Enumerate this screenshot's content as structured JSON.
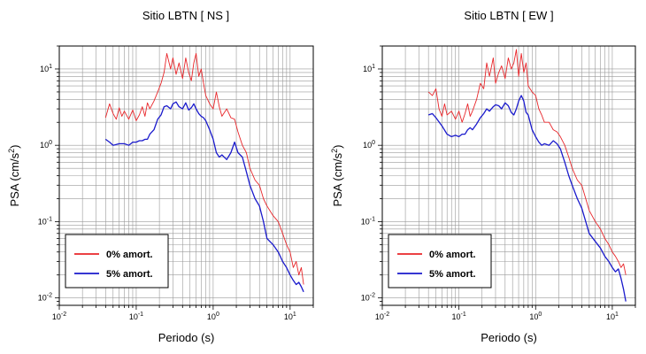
{
  "chart_data": [
    {
      "type": "line",
      "title": "Sitio LBTN [ NS ]",
      "xlabel": "Periodo (s)",
      "ylabel": "PSA (cm/s2)",
      "xscale": "log",
      "yscale": "log",
      "xlim": [
        0.01,
        20
      ],
      "ylim": [
        0.008,
        20
      ],
      "grid": true,
      "legend_position": "bottom-left",
      "x_ticks": [
        "10-2",
        "10-1",
        "100",
        "101"
      ],
      "y_ticks": [
        "10-2",
        "10-1",
        "100",
        "101"
      ],
      "series": [
        {
          "name": "0% amort.",
          "color": "#e8262a",
          "x": [
            0.04,
            0.045,
            0.05,
            0.055,
            0.06,
            0.065,
            0.07,
            0.08,
            0.09,
            0.1,
            0.11,
            0.12,
            0.13,
            0.14,
            0.15,
            0.17,
            0.19,
            0.21,
            0.23,
            0.25,
            0.28,
            0.3,
            0.33,
            0.36,
            0.4,
            0.44,
            0.48,
            0.52,
            0.56,
            0.6,
            0.65,
            0.7,
            0.75,
            0.8,
            0.9,
            1.0,
            1.1,
            1.2,
            1.3,
            1.5,
            1.7,
            1.9,
            2.1,
            2.4,
            2.7,
            3.0,
            3.5,
            4.0,
            4.5,
            5.0,
            6.0,
            7.0,
            8.0,
            9.0,
            10.0,
            11.0,
            12.0,
            13.0,
            14.0,
            15.0
          ],
          "y": [
            2.3,
            3.5,
            2.6,
            2.2,
            3.1,
            2.4,
            2.8,
            2.2,
            2.9,
            2.1,
            2.5,
            3.2,
            2.4,
            3.6,
            3.0,
            3.8,
            5.0,
            6.5,
            9.0,
            16.0,
            10.0,
            14.0,
            8.5,
            12.0,
            7.5,
            14.0,
            9.0,
            7.0,
            12.0,
            16.0,
            8.0,
            10.0,
            6.5,
            4.5,
            3.5,
            3.0,
            5.0,
            3.2,
            2.4,
            3.0,
            2.3,
            2.2,
            1.5,
            1.0,
            0.8,
            0.5,
            0.35,
            0.3,
            0.2,
            0.16,
            0.12,
            0.1,
            0.07,
            0.05,
            0.04,
            0.025,
            0.03,
            0.02,
            0.025,
            0.015
          ]
        },
        {
          "name": "5% amort.",
          "color": "#1a1acc",
          "x": [
            0.04,
            0.045,
            0.05,
            0.06,
            0.07,
            0.08,
            0.09,
            0.1,
            0.11,
            0.12,
            0.13,
            0.14,
            0.15,
            0.17,
            0.19,
            0.21,
            0.23,
            0.25,
            0.28,
            0.3,
            0.33,
            0.36,
            0.4,
            0.44,
            0.48,
            0.52,
            0.56,
            0.6,
            0.65,
            0.7,
            0.75,
            0.8,
            0.9,
            1.0,
            1.1,
            1.2,
            1.3,
            1.5,
            1.7,
            1.9,
            2.1,
            2.4,
            2.7,
            3.0,
            3.5,
            4.0,
            4.5,
            5.0,
            6.0,
            7.0,
            8.0,
            9.0,
            10.0,
            11.0,
            12.0,
            13.0,
            14.0,
            15.0
          ],
          "y": [
            1.2,
            1.1,
            1.0,
            1.05,
            1.05,
            1.0,
            1.1,
            1.1,
            1.15,
            1.15,
            1.2,
            1.2,
            1.4,
            1.6,
            2.2,
            2.5,
            3.2,
            3.3,
            3.0,
            3.5,
            3.7,
            3.2,
            3.0,
            3.6,
            2.9,
            3.1,
            3.5,
            3.0,
            2.6,
            2.4,
            2.3,
            2.1,
            1.6,
            1.2,
            0.8,
            0.7,
            0.75,
            0.65,
            0.8,
            1.1,
            0.8,
            0.7,
            0.45,
            0.3,
            0.2,
            0.16,
            0.1,
            0.06,
            0.05,
            0.04,
            0.03,
            0.025,
            0.02,
            0.017,
            0.015,
            0.016,
            0.014,
            0.012
          ]
        }
      ]
    },
    {
      "type": "line",
      "title": "Sitio LBTN [ EW ]",
      "xlabel": "Periodo (s)",
      "ylabel": "PSA (cm/s2)",
      "xscale": "log",
      "yscale": "log",
      "xlim": [
        0.01,
        20
      ],
      "ylim": [
        0.008,
        20
      ],
      "grid": true,
      "legend_position": "bottom-left",
      "x_ticks": [
        "10-2",
        "10-1",
        "100",
        "101"
      ],
      "y_ticks": [
        "10-2",
        "10-1",
        "100",
        "101"
      ],
      "series": [
        {
          "name": "0% amort.",
          "color": "#e8262a",
          "x": [
            0.04,
            0.045,
            0.05,
            0.055,
            0.06,
            0.065,
            0.07,
            0.08,
            0.09,
            0.1,
            0.11,
            0.12,
            0.13,
            0.14,
            0.15,
            0.17,
            0.19,
            0.21,
            0.23,
            0.25,
            0.28,
            0.3,
            0.33,
            0.36,
            0.4,
            0.44,
            0.48,
            0.52,
            0.56,
            0.6,
            0.65,
            0.7,
            0.75,
            0.8,
            0.9,
            1.0,
            1.1,
            1.2,
            1.3,
            1.5,
            1.7,
            1.9,
            2.1,
            2.4,
            2.7,
            3.0,
            3.5,
            4.0,
            4.5,
            5.0,
            6.0,
            7.0,
            8.0,
            9.0,
            10.0,
            11.0,
            12.0,
            13.0,
            14.0,
            15.0
          ],
          "y": [
            5.0,
            4.5,
            5.5,
            3.0,
            2.4,
            3.5,
            2.5,
            2.8,
            2.2,
            2.8,
            2.0,
            2.6,
            3.5,
            2.4,
            2.8,
            4.0,
            6.5,
            5.5,
            12.0,
            8.0,
            14.0,
            6.5,
            9.0,
            11.0,
            7.5,
            14.0,
            10.0,
            12.0,
            18.0,
            8.0,
            16.0,
            9.0,
            12.0,
            6.0,
            5.0,
            4.5,
            3.0,
            2.5,
            2.0,
            2.0,
            1.6,
            1.5,
            1.3,
            1.0,
            0.7,
            0.5,
            0.35,
            0.3,
            0.2,
            0.14,
            0.1,
            0.08,
            0.06,
            0.05,
            0.04,
            0.035,
            0.03,
            0.025,
            0.028,
            0.02
          ]
        },
        {
          "name": "5% amort.",
          "color": "#1a1acc",
          "x": [
            0.04,
            0.045,
            0.05,
            0.06,
            0.07,
            0.08,
            0.09,
            0.1,
            0.11,
            0.12,
            0.13,
            0.14,
            0.15,
            0.17,
            0.19,
            0.21,
            0.23,
            0.25,
            0.28,
            0.3,
            0.33,
            0.36,
            0.4,
            0.44,
            0.48,
            0.52,
            0.56,
            0.6,
            0.65,
            0.7,
            0.75,
            0.8,
            0.9,
            1.0,
            1.1,
            1.2,
            1.3,
            1.5,
            1.7,
            1.9,
            2.1,
            2.4,
            2.7,
            3.0,
            3.5,
            4.0,
            4.5,
            5.0,
            6.0,
            7.0,
            8.0,
            9.0,
            10.0,
            11.0,
            12.0,
            13.0,
            14.0,
            15.0
          ],
          "y": [
            2.5,
            2.6,
            2.3,
            1.8,
            1.4,
            1.3,
            1.35,
            1.3,
            1.4,
            1.4,
            1.6,
            1.7,
            1.6,
            1.9,
            2.3,
            2.6,
            3.0,
            2.8,
            3.2,
            3.4,
            3.3,
            3.0,
            3.6,
            3.3,
            2.7,
            2.5,
            3.0,
            3.8,
            4.5,
            3.8,
            2.7,
            2.5,
            1.6,
            1.3,
            1.1,
            1.0,
            1.05,
            1.0,
            1.15,
            1.05,
            0.9,
            0.6,
            0.4,
            0.3,
            0.2,
            0.15,
            0.1,
            0.07,
            0.055,
            0.045,
            0.035,
            0.03,
            0.025,
            0.022,
            0.024,
            0.018,
            0.013,
            0.009
          ]
        }
      ]
    }
  ]
}
